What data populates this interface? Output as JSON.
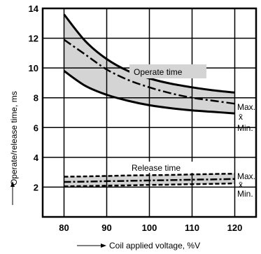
{
  "chart_data": {
    "type": "line",
    "xlabel": "Coil applied voltage, %V",
    "ylabel": "Operate/release time, ms",
    "xlim": [
      75,
      125
    ],
    "ylim": [
      0,
      14
    ],
    "xticks": [
      80,
      90,
      100,
      110,
      120
    ],
    "yticks": [
      2,
      4,
      6,
      8,
      10,
      12,
      14
    ],
    "x_tick_labels": [
      "80",
      "90",
      "100",
      "110",
      "120"
    ],
    "y_tick_labels": [
      "2",
      "4",
      "6",
      "8",
      "10",
      "12",
      "14"
    ],
    "grid": true,
    "x": [
      80,
      85,
      90,
      95,
      100,
      105,
      110,
      115,
      120
    ],
    "series": [
      {
        "name": "Operate Max.",
        "values": [
          13.6,
          11.8,
          10.6,
          9.8,
          9.3,
          8.95,
          8.7,
          8.5,
          8.35
        ]
      },
      {
        "name": "Operate x̄",
        "values": [
          11.9,
          10.9,
          9.9,
          9.2,
          8.7,
          8.3,
          8.0,
          7.8,
          7.6
        ]
      },
      {
        "name": "Operate Min.",
        "values": [
          9.8,
          8.8,
          8.2,
          7.8,
          7.5,
          7.3,
          7.15,
          7.05,
          6.95
        ]
      },
      {
        "name": "Release Max.",
        "values": [
          2.7,
          2.72,
          2.75,
          2.78,
          2.8,
          2.82,
          2.85,
          2.88,
          2.9
        ]
      },
      {
        "name": "Release x̄",
        "values": [
          2.35,
          2.37,
          2.4,
          2.42,
          2.45,
          2.47,
          2.5,
          2.52,
          2.55
        ]
      },
      {
        "name": "Release Min.",
        "values": [
          2.05,
          2.07,
          2.1,
          2.12,
          2.15,
          2.17,
          2.2,
          2.22,
          2.25
        ]
      }
    ],
    "annotations": {
      "operate_time": "Operate time",
      "release_time": "Release time",
      "max": "Max.",
      "mean": "x̄",
      "min": "Min."
    },
    "colors": {
      "band": "#d4d4d4",
      "line": "#000000"
    }
  }
}
